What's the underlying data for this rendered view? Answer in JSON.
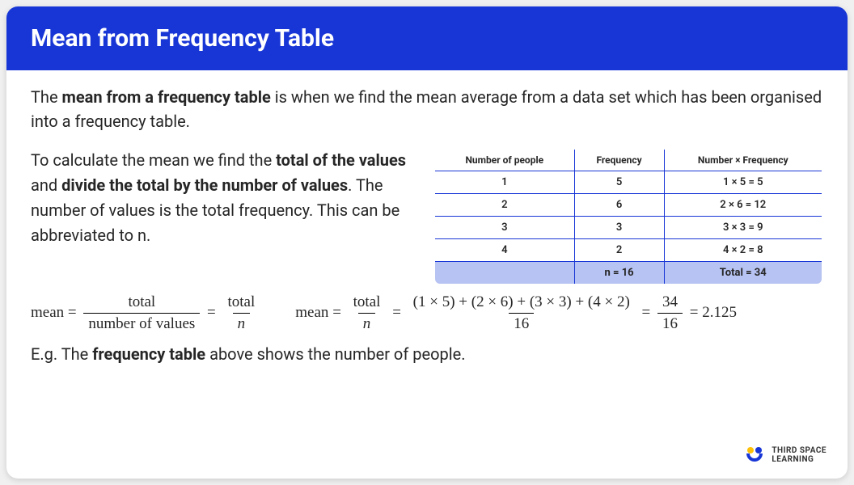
{
  "header": {
    "title": "Mean from Frequency Table"
  },
  "intro": {
    "pre": "The ",
    "b1": "mean from a frequency table",
    "post": " is when we find the mean average from a data set which has been organised into a frequency table."
  },
  "desc": {
    "p1": "To calculate the mean we find the ",
    "b1": "total of the values",
    "p2": " and ",
    "b2": "divide the total by the number of values",
    "p3": ". The number of values is the total frequency.  This can be abbreviated to n."
  },
  "table": {
    "headers": [
      "Number of people",
      "Frequency",
      "Number × Frequency"
    ],
    "rows": [
      [
        "1",
        "5",
        "1 × 5 = 5"
      ],
      [
        "2",
        "6",
        "2 × 6 = 12"
      ],
      [
        "3",
        "3",
        "3 × 3 = 9"
      ],
      [
        "4",
        "2",
        "4 × 2 = 8"
      ]
    ],
    "totals": [
      "",
      "n = 16",
      "Total = 34"
    ],
    "border_color": "#1836d6",
    "totals_bg": "#b7c3f2"
  },
  "formula1": {
    "lhs": "mean",
    "eq": "=",
    "f1_num": "total",
    "f1_den": "number of values",
    "f2_num": "total",
    "f2_den": "n"
  },
  "formula2": {
    "lhs": "mean",
    "eq": "=",
    "f1_num": "total",
    "f1_den": "n",
    "f2_num": "(1 × 5) + (2 × 6) + (3 × 3) + (4 × 2)",
    "f2_den": "16",
    "f3_num": "34",
    "f3_den": "16",
    "result": "2.125"
  },
  "eg": {
    "pre": "E.g. The ",
    "b1": "frequency table",
    "post": " above shows the number of people."
  },
  "logo": {
    "line1": "THIRD SPACE",
    "line2": "LEARNING"
  },
  "colors": {
    "header_bg": "#1836d6",
    "header_fg": "#ffffff",
    "body_fg": "#262626"
  }
}
